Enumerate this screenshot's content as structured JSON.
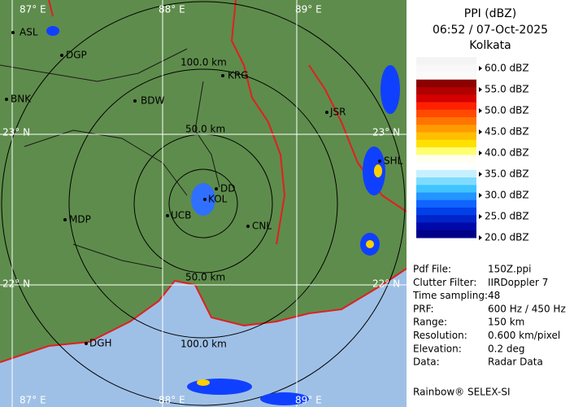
{
  "map": {
    "cities": [
      "ASL",
      "DGP",
      "BNK",
      "BDW",
      "KRG",
      "JSR",
      "SHL",
      "DD",
      "KOL",
      "UCB",
      "MDP",
      "CNL",
      "DGH"
    ],
    "grid_labels": [
      "87° E",
      "88° E",
      "89° E",
      "23° N",
      "22° N",
      "87° E",
      "88° E",
      "89° E",
      "23° N",
      "22° N"
    ],
    "range_labels": [
      "100.0 km",
      "50.0 km",
      "50.0 km",
      "100.0 km"
    ]
  },
  "panel": {
    "title": [
      "PPI (dBZ)",
      "06:52 / 07-Oct-2025",
      "Kolkata"
    ],
    "legend": {
      "labels": [
        "60.0 dBZ",
        "55.0 dBZ",
        "50.0 dBZ",
        "45.0 dBZ",
        "40.0 dBZ",
        "35.0 dBZ",
        "30.0 dBZ",
        "25.0 dBZ",
        "20.0 dBZ"
      ],
      "colors": [
        "#f4f4f4",
        "#f8f8f8",
        "#fafafa",
        "#8b0000",
        "#b00000",
        "#d40000",
        "#ff2000",
        "#ff4a00",
        "#ff7400",
        "#ff9a00",
        "#ffbe00",
        "#ffe000",
        "#ffff70",
        "#fffff0",
        "#ffffff",
        "#c8f0ff",
        "#80dcff",
        "#40c4ff",
        "#2494ff",
        "#1064ff",
        "#0040e8",
        "#0024c8",
        "#0008a8",
        "#000088"
      ]
    },
    "info": [
      [
        "Pdf File:",
        "150Z.ppi"
      ],
      [
        "Clutter Filter:",
        "IIRDoppler 7"
      ],
      [
        "Time sampling:48"
      ],
      [
        "PRF:",
        "600 Hz / 450 Hz"
      ],
      [
        "Range:",
        "150 km"
      ],
      [
        "Resolution:",
        "0.600 km/pixel"
      ],
      [
        "Elevation:",
        "0.2 deg"
      ],
      [
        "Data:",
        "Radar Data"
      ]
    ],
    "footer": "Rainbow® SELEX-SI"
  }
}
